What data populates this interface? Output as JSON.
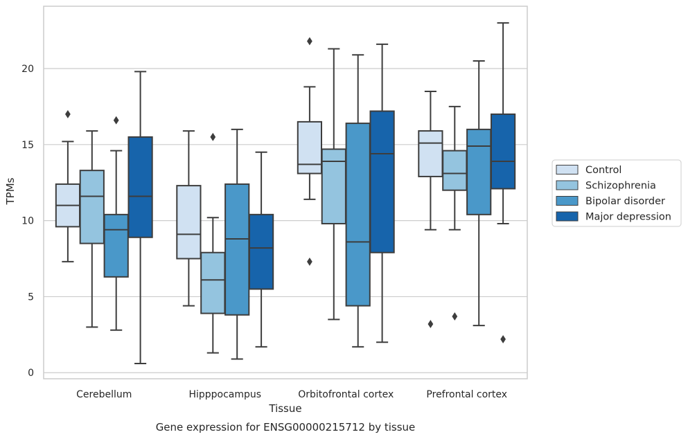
{
  "chart_data": {
    "type": "box",
    "caption": "Gene expression for ENSG00000215712 by tissue",
    "xlabel": "Tissue",
    "ylabel": "TPMs",
    "ylim": [
      -0.4,
      24.1
    ],
    "yticks": [
      0,
      5,
      10,
      15,
      20
    ],
    "grid": "horizontal",
    "legend_position": "right",
    "categories": [
      "Cerebellum",
      "Hipppocampus",
      "Orbitofrontal cortex",
      "Prefrontal cortex"
    ],
    "series": [
      {
        "name": "Control",
        "color": "#d0e1f2",
        "boxes": [
          {
            "whislo": 7.3,
            "q1": 9.6,
            "med": 11.0,
            "q3": 12.4,
            "whishi": 15.2,
            "fliers": [
              17.0
            ]
          },
          {
            "whislo": 4.4,
            "q1": 7.5,
            "med": 9.1,
            "q3": 12.3,
            "whishi": 15.9,
            "fliers": []
          },
          {
            "whislo": 11.4,
            "q1": 13.1,
            "med": 13.7,
            "q3": 16.5,
            "whishi": 18.8,
            "fliers": [
              21.8,
              7.3
            ]
          },
          {
            "whislo": 9.4,
            "q1": 12.9,
            "med": 15.1,
            "q3": 15.9,
            "whishi": 18.5,
            "fliers": [
              3.2
            ]
          }
        ]
      },
      {
        "name": "Schizophrenia",
        "color": "#94c4df",
        "boxes": [
          {
            "whislo": 3.0,
            "q1": 8.5,
            "med": 11.6,
            "q3": 13.3,
            "whishi": 15.9,
            "fliers": []
          },
          {
            "whislo": 1.3,
            "q1": 3.9,
            "med": 6.1,
            "q3": 7.9,
            "whishi": 10.2,
            "fliers": [
              15.5
            ]
          },
          {
            "whislo": 3.5,
            "q1": 9.8,
            "med": 13.9,
            "q3": 14.7,
            "whishi": 21.3,
            "fliers": []
          },
          {
            "whislo": 9.4,
            "q1": 12.0,
            "med": 13.1,
            "q3": 14.6,
            "whishi": 17.5,
            "fliers": [
              3.7
            ]
          }
        ]
      },
      {
        "name": "Bipolar disorder",
        "color": "#4a98c9",
        "boxes": [
          {
            "whislo": 2.8,
            "q1": 6.3,
            "med": 9.4,
            "q3": 10.4,
            "whishi": 14.6,
            "fliers": [
              16.6
            ]
          },
          {
            "whislo": 0.9,
            "q1": 3.8,
            "med": 8.8,
            "q3": 12.4,
            "whishi": 16.0,
            "fliers": []
          },
          {
            "whislo": 1.7,
            "q1": 4.4,
            "med": 8.6,
            "q3": 16.4,
            "whishi": 20.9,
            "fliers": []
          },
          {
            "whislo": 3.1,
            "q1": 10.4,
            "med": 14.9,
            "q3": 16.0,
            "whishi": 20.5,
            "fliers": []
          }
        ]
      },
      {
        "name": "Major depression",
        "color": "#1764ab",
        "boxes": [
          {
            "whislo": 0.6,
            "q1": 8.9,
            "med": 11.6,
            "q3": 15.5,
            "whishi": 19.8,
            "fliers": []
          },
          {
            "whislo": 1.7,
            "q1": 5.5,
            "med": 8.2,
            "q3": 10.4,
            "whishi": 14.5,
            "fliers": []
          },
          {
            "whislo": 2.0,
            "q1": 7.9,
            "med": 14.4,
            "q3": 17.2,
            "whishi": 21.6,
            "fliers": []
          },
          {
            "whislo": 9.8,
            "q1": 12.1,
            "med": 13.9,
            "q3": 17.0,
            "whishi": 23.0,
            "fliers": [
              2.2
            ]
          }
        ]
      }
    ]
  }
}
